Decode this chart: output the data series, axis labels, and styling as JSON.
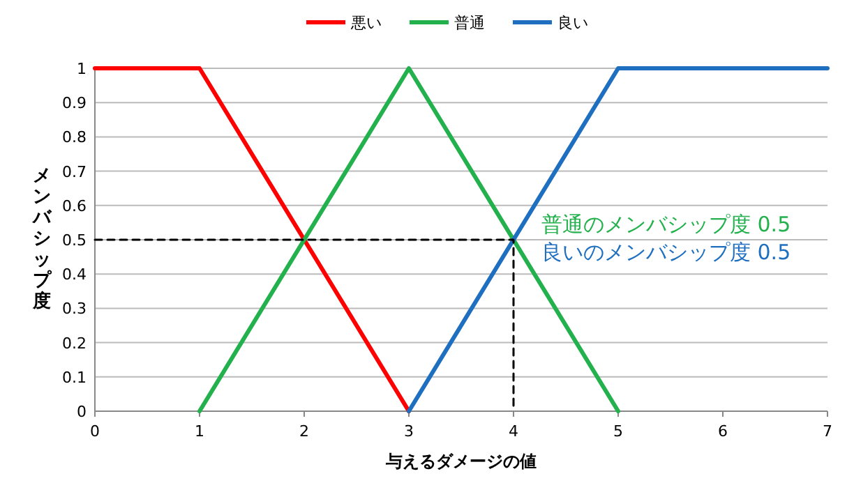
{
  "chart_data": {
    "type": "line",
    "xlabel": "与えるダメージの値",
    "ylabel": "メンバシップ度",
    "xlim": [
      0,
      7
    ],
    "ylim": [
      0,
      1
    ],
    "xticks": [
      0,
      1,
      2,
      3,
      4,
      5,
      6,
      7
    ],
    "yticks": [
      0,
      0.1,
      0.2,
      0.3,
      0.4,
      0.5,
      0.6,
      0.7,
      0.8,
      0.9,
      1
    ],
    "grid": "y",
    "legend": "top",
    "marker": "none",
    "series": [
      {
        "name": "悪い",
        "color": "#ff0000",
        "x": [
          0,
          1,
          3
        ],
        "values": [
          1,
          1,
          0
        ]
      },
      {
        "name": "普通",
        "color": "#22b14c",
        "x": [
          1,
          3,
          5
        ],
        "values": [
          0,
          1,
          0
        ]
      },
      {
        "name": "良い",
        "color": "#1f6fc0",
        "x": [
          3,
          5,
          7
        ],
        "values": [
          0,
          1,
          1
        ]
      },
      {
        "color": "#000000",
        "line_style": "dashed",
        "x": [
          0,
          4,
          4
        ],
        "values": [
          0.5,
          0.5,
          0
        ]
      }
    ],
    "annotations": [
      {
        "text": "普通のメンバシップ度 0.5",
        "x": 4,
        "y": 0.5
      },
      {
        "text": "良いのメンバシップ度 0.5",
        "x": 4,
        "y": 0.5
      }
    ]
  }
}
